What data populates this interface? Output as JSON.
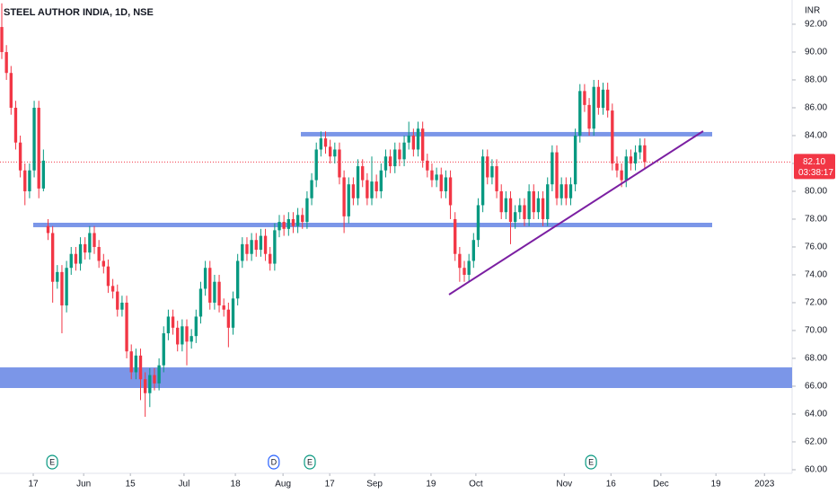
{
  "chart_data": {
    "type": "candlestick",
    "title": "STEEL AUTHOR INDIA, 1D, NSE",
    "y_axis_label": "INR",
    "up_color": "#089981",
    "down_color": "#f23645",
    "xlim": [
      -0.39,
      170.87
    ],
    "xticks": [
      {
        "value": 6.8,
        "label": "17"
      },
      {
        "value": 17.7,
        "label": "Jun"
      },
      {
        "value": 27.8,
        "label": "15"
      },
      {
        "value": 39.4,
        "label": "Jul"
      },
      {
        "value": 50.5,
        "label": "18"
      },
      {
        "value": 60.8,
        "label": "Aug"
      },
      {
        "value": 70.9,
        "label": "17"
      },
      {
        "value": 80.6,
        "label": "Sep"
      },
      {
        "value": 92.8,
        "label": "19"
      },
      {
        "value": 102.5,
        "label": "Oct"
      },
      {
        "value": 121.6,
        "label": "Nov"
      },
      {
        "value": 131.7,
        "label": "16"
      },
      {
        "value": 142.5,
        "label": "Dec"
      },
      {
        "value": 154.4,
        "label": "19"
      },
      {
        "value": 164.9,
        "label": "2023"
      }
    ],
    "ylim": [
      59.74,
      93.74
    ],
    "yticks": [
      {
        "value": 60,
        "label": "60.00"
      },
      {
        "value": 62,
        "label": "62.00"
      },
      {
        "value": 64,
        "label": "64.00"
      },
      {
        "value": 66,
        "label": "66.00"
      },
      {
        "value": 68,
        "label": "68.00"
      },
      {
        "value": 70,
        "label": "70.00"
      },
      {
        "value": 72,
        "label": "72.00"
      },
      {
        "value": 74,
        "label": "74.00"
      },
      {
        "value": 76,
        "label": "76.00"
      },
      {
        "value": 78,
        "label": "78.00"
      },
      {
        "value": 80,
        "label": "80.00"
      },
      {
        "value": 82,
        "label": "82.00"
      },
      {
        "value": 84,
        "label": "84.00"
      },
      {
        "value": 86,
        "label": "86.00"
      },
      {
        "value": 88,
        "label": "88.00"
      },
      {
        "value": 90,
        "label": "90.00"
      },
      {
        "value": 92,
        "label": "92.00"
      }
    ],
    "open": [
      91.8,
      90.0,
      88.5,
      86.0,
      83.5,
      81.5,
      80.0,
      81.5,
      86.0,
      80.2,
      77.5,
      77.0,
      73.5,
      74.2,
      71.8,
      74.5,
      75.5,
      74.8,
      76.2,
      75.6,
      77.0,
      76.0,
      75.0,
      74.6,
      73.2,
      72.8,
      71.5,
      72.0,
      68.5,
      67.0,
      68.2,
      66.5,
      65.5,
      66.8,
      66.2,
      67.5,
      69.8,
      71.0,
      70.2,
      69.0,
      70.3,
      69.2,
      69.6,
      71.0,
      73.0,
      74.5,
      72.0,
      73.5,
      71.8,
      71.5,
      70.2,
      72.3,
      75.0,
      76.2,
      75.5,
      76.5,
      75.8,
      76.8,
      75.5,
      74.8,
      77.2,
      77.8,
      77.3,
      78.0,
      77.5,
      78.3,
      77.8,
      79.5,
      80.8,
      83.0,
      83.8,
      83.2,
      82.5,
      83.0,
      81.0,
      78.2,
      80.5,
      79.5,
      81.8,
      80.8,
      79.5,
      80.7,
      80.0,
      81.5,
      82.5,
      81.8,
      83.0,
      82.3,
      83.5,
      84.0,
      83.0,
      84.5,
      82.2,
      81.5,
      80.8,
      81.2,
      80.0,
      81.0,
      78.0,
      75.5,
      74.5,
      74.0,
      75.0,
      76.5,
      79.0,
      82.5,
      81.0,
      81.8,
      80.0,
      78.5,
      79.5,
      77.8,
      78.5,
      79.0,
      78.0,
      80.0,
      78.5,
      79.5,
      78.0,
      80.5,
      82.8,
      79.5,
      80.5,
      79.5,
      80.5,
      84.0,
      87.2,
      86.2,
      84.5,
      87.5,
      86.0,
      87.3,
      85.8,
      82.0,
      81.5,
      80.8,
      82.5,
      82.0,
      82.8,
      83.3
    ],
    "high": [
      93.5,
      90.5,
      89.0,
      86.5,
      84.0,
      82.0,
      82.0,
      86.5,
      86.5,
      83.0,
      78.0,
      77.5,
      74.7,
      74.7,
      75.0,
      76.0,
      76.0,
      76.7,
      76.7,
      77.5,
      77.5,
      76.5,
      75.5,
      75.1,
      73.7,
      73.3,
      72.5,
      72.5,
      69.0,
      68.7,
      68.7,
      67.0,
      67.3,
      67.3,
      68.0,
      70.3,
      71.5,
      71.5,
      70.7,
      70.8,
      70.8,
      70.1,
      71.5,
      73.5,
      75.0,
      75.0,
      74.0,
      74.0,
      72.3,
      72.0,
      72.8,
      75.5,
      76.7,
      76.7,
      77.0,
      77.0,
      77.3,
      77.3,
      76.0,
      77.7,
      78.3,
      78.3,
      78.5,
      78.5,
      78.8,
      78.8,
      80.0,
      81.3,
      83.5,
      84.3,
      84.3,
      83.7,
      83.5,
      83.5,
      81.5,
      81.0,
      81.0,
      82.3,
      82.3,
      81.3,
      82.5,
      81.2,
      82.0,
      83.0,
      83.0,
      83.5,
      83.5,
      84.0,
      85.0,
      84.5,
      85.0,
      85.0,
      82.7,
      82.0,
      81.7,
      81.7,
      81.5,
      81.5,
      78.5,
      76.0,
      75.0,
      75.5,
      77.0,
      79.5,
      83.0,
      83.0,
      82.3,
      82.3,
      80.5,
      80.0,
      80.0,
      79.0,
      79.5,
      79.5,
      80.5,
      80.5,
      80.0,
      80.0,
      81.0,
      83.3,
      83.3,
      81.0,
      81.0,
      81.0,
      84.5,
      87.7,
      87.7,
      86.7,
      88.0,
      88.0,
      87.8,
      87.8,
      86.3,
      82.5,
      82.0,
      83.0,
      83.0,
      83.3,
      83.8,
      83.8
    ],
    "low": [
      89.5,
      88.0,
      85.5,
      83.0,
      81.0,
      79.0,
      79.5,
      81.0,
      79.5,
      80.0,
      76.5,
      72.0,
      73.0,
      69.8,
      71.3,
      74.0,
      74.3,
      74.3,
      75.1,
      75.1,
      75.5,
      74.5,
      74.1,
      72.7,
      72.3,
      71.0,
      71.0,
      68.0,
      66.5,
      66.5,
      65.0,
      63.8,
      64.5,
      65.7,
      65.7,
      67.0,
      69.3,
      69.7,
      68.5,
      68.5,
      67.5,
      68.7,
      69.1,
      70.5,
      72.5,
      71.5,
      71.5,
      71.3,
      71.0,
      68.8,
      69.7,
      71.8,
      74.5,
      75.0,
      75.0,
      75.3,
      75.3,
      75.0,
      74.3,
      74.3,
      76.7,
      76.8,
      76.8,
      77.0,
      77.0,
      77.3,
      77.3,
      79.0,
      80.3,
      82.5,
      82.7,
      82.0,
      82.0,
      80.5,
      77.0,
      77.7,
      79.0,
      79.0,
      80.3,
      79.0,
      79.0,
      79.5,
      79.5,
      81.0,
      81.3,
      81.3,
      81.8,
      81.8,
      83.0,
      82.5,
      82.5,
      81.7,
      81.0,
      80.3,
      80.3,
      79.5,
      79.5,
      78.0,
      75.0,
      73.5,
      73.5,
      73.5,
      74.5,
      76.0,
      78.5,
      80.5,
      80.5,
      79.5,
      78.0,
      78.0,
      76.2,
      77.3,
      78.0,
      77.5,
      77.5,
      78.0,
      78.0,
      77.5,
      77.5,
      80.0,
      79.0,
      79.0,
      79.0,
      79.0,
      80.0,
      83.5,
      85.7,
      84.0,
      84.0,
      85.5,
      85.5,
      85.3,
      81.5,
      81.0,
      80.3,
      80.3,
      81.5,
      81.5,
      82.3,
      81.6
    ],
    "close": [
      90.0,
      88.5,
      86.0,
      83.5,
      81.5,
      80.0,
      81.5,
      86.0,
      80.2,
      82.2,
      77.0,
      73.5,
      74.2,
      71.8,
      74.5,
      75.5,
      74.8,
      76.2,
      75.6,
      77.0,
      76.0,
      75.0,
      74.6,
      73.2,
      72.8,
      71.5,
      72.0,
      68.5,
      67.0,
      68.2,
      66.5,
      65.5,
      66.8,
      66.2,
      67.5,
      69.8,
      71.0,
      70.2,
      69.0,
      70.3,
      69.2,
      69.6,
      71.0,
      73.0,
      74.5,
      72.0,
      73.5,
      71.8,
      71.5,
      70.2,
      72.3,
      75.0,
      76.2,
      75.5,
      76.5,
      75.8,
      76.8,
      75.5,
      74.8,
      77.2,
      77.8,
      77.3,
      78.0,
      77.5,
      78.3,
      77.8,
      79.5,
      80.8,
      83.0,
      83.8,
      83.2,
      82.5,
      83.0,
      81.0,
      78.2,
      80.5,
      79.5,
      81.8,
      80.8,
      79.5,
      80.7,
      80.0,
      81.5,
      82.5,
      81.8,
      83.0,
      82.3,
      83.5,
      84.0,
      83.0,
      84.5,
      82.2,
      81.5,
      80.8,
      81.2,
      80.0,
      81.0,
      79.0,
      75.5,
      74.5,
      74.0,
      75.0,
      76.5,
      79.0,
      82.5,
      81.0,
      81.8,
      80.0,
      78.5,
      79.5,
      77.8,
      78.5,
      79.0,
      78.0,
      80.0,
      78.5,
      79.5,
      78.0,
      80.5,
      82.8,
      79.5,
      80.5,
      79.5,
      80.5,
      84.0,
      87.2,
      86.2,
      84.5,
      87.5,
      86.0,
      87.3,
      85.8,
      82.0,
      81.5,
      80.8,
      82.5,
      82.0,
      82.8,
      83.3,
      82.1
    ],
    "last_price": {
      "value": 82.1,
      "label": "82.10",
      "countdown": "03:38:17"
    },
    "zones": [
      {
        "x": [
          64.66,
          153.59
        ],
        "y": [
          83.94,
          84.26
        ],
        "color": "#7b96e8"
      },
      {
        "x": [
          6.79,
          153.59
        ],
        "y": [
          77.42,
          77.74
        ],
        "color": "#7b96e8"
      },
      {
        "x": [
          -0.39,
          170.87
        ],
        "y": [
          65.87,
          67.35
        ],
        "color": "#7b96e8"
      }
    ],
    "trendline": {
      "x": [
        96.7,
        151.64
      ],
      "y": [
        72.58,
        84.32
      ],
      "color": "#7b1fa2"
    },
    "events": [
      {
        "label": "E",
        "x": 10.9,
        "color": "#089981"
      },
      {
        "label": "D",
        "x": 58.8,
        "color": "#2962ff"
      },
      {
        "label": "E",
        "x": 66.6,
        "color": "#089981"
      },
      {
        "label": "E",
        "x": 127.4,
        "color": "#089981"
      }
    ]
  }
}
